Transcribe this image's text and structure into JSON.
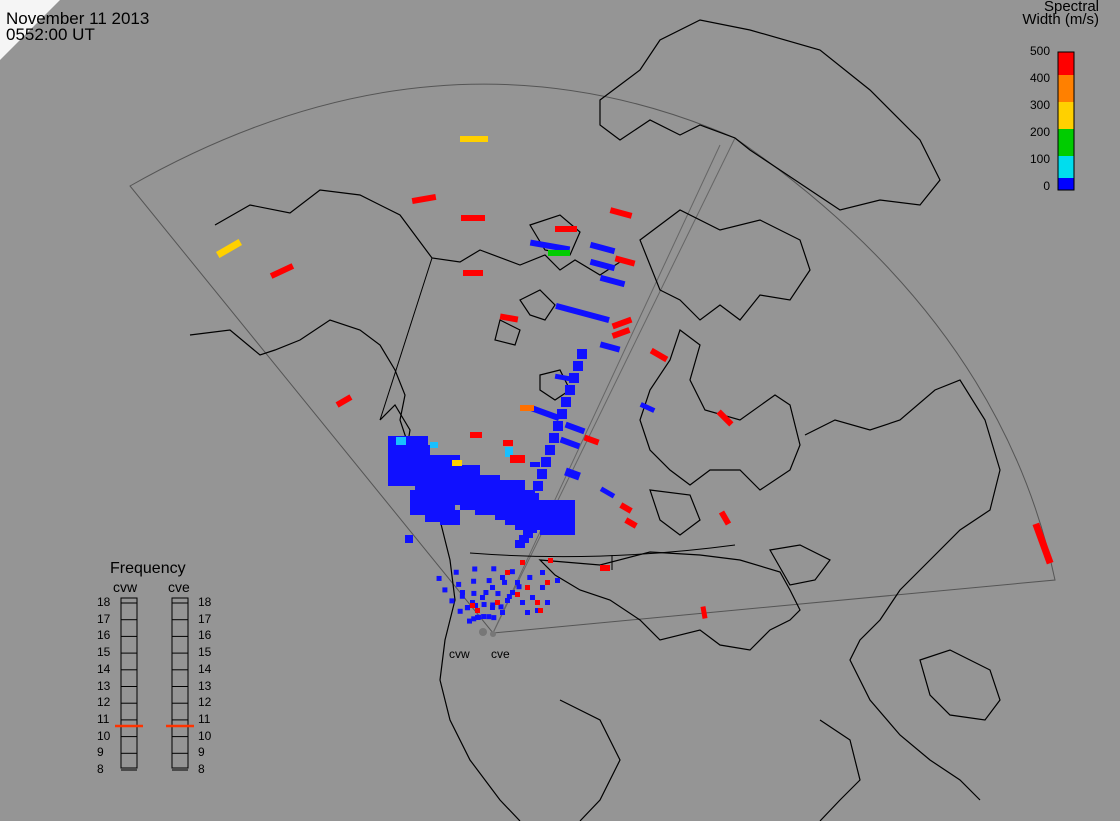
{
  "header": {
    "date": "November 11 2013",
    "time": "0552:00 UT"
  },
  "colorbar": {
    "title_line1": "Spectral",
    "title_line2": "Width (m/s)",
    "ticks": [
      "500",
      "400",
      "300",
      "200",
      "100",
      "0"
    ],
    "colors": [
      "#ff0000",
      "#ff8000",
      "#ffd000",
      "#00cc00",
      "#00ddee",
      "#0000ff"
    ]
  },
  "frequency": {
    "title": "Frequency",
    "left_label": "cvw",
    "right_label": "cve",
    "ticks": [
      "18",
      "17",
      "16",
      "15",
      "14",
      "13",
      "12",
      "11",
      "10",
      "9",
      "8"
    ],
    "cvw_value": 10.5,
    "cve_value": 10.5,
    "marker_color": "#ff3300"
  },
  "radars": {
    "west": "cvw",
    "east": "cve"
  },
  "colors": {
    "background": "#959595",
    "scatter_blue": "#1010ff"
  }
}
